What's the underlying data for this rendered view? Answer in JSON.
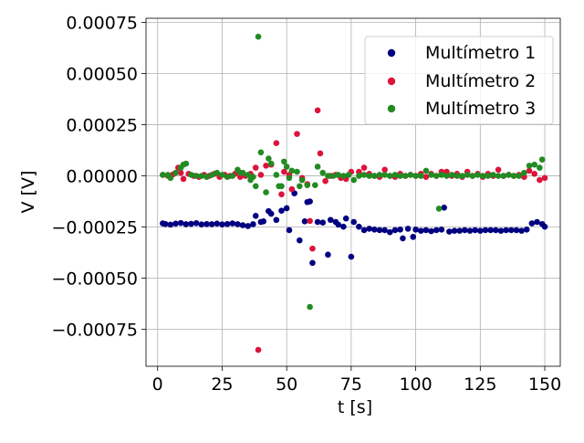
{
  "chart_data": {
    "type": "scatter",
    "title": "",
    "xlabel": "t [s]",
    "ylabel": "V [V]",
    "xlim": [
      -4.5,
      156
    ],
    "ylim": [
      -0.00093,
      0.00077
    ],
    "xticks": [
      0,
      25,
      50,
      75,
      100,
      125,
      150
    ],
    "xtick_labels": [
      "0",
      "25",
      "50",
      "75",
      "100",
      "125",
      "150"
    ],
    "yticks": [
      -0.00075,
      -0.0005,
      -0.00025,
      0.0,
      0.00025,
      0.0005,
      0.00075
    ],
    "ytick_labels": [
      "−0.00075",
      "−0.00050",
      "−0.00025",
      "0.00000",
      "0.00025",
      "0.00050",
      "0.00075"
    ],
    "grid": true,
    "legend_position": "top-right",
    "series": [
      {
        "name": "Multímetro 1",
        "color": "#000080",
        "points": [
          [
            2,
            -0.000232
          ],
          [
            3,
            -0.000235
          ],
          [
            5,
            -0.000238
          ],
          [
            7,
            -0.000233
          ],
          [
            9,
            -0.00023
          ],
          [
            11,
            -0.000236
          ],
          [
            13,
            -0.000234
          ],
          [
            15,
            -0.000231
          ],
          [
            17,
            -0.000237
          ],
          [
            19,
            -0.000235
          ],
          [
            21,
            -0.000236
          ],
          [
            23,
            -0.000233
          ],
          [
            25,
            -0.000237
          ],
          [
            27,
            -0.000235
          ],
          [
            29,
            -0.000232
          ],
          [
            31,
            -0.000236
          ],
          [
            33,
            -0.000241
          ],
          [
            35,
            -0.000245
          ],
          [
            37,
            -0.000236
          ],
          [
            38,
            -0.000195
          ],
          [
            40,
            -0.000225
          ],
          [
            41,
            -0.000222
          ],
          [
            43,
            -0.000172
          ],
          [
            44,
            -0.000185
          ],
          [
            46,
            -0.000215
          ],
          [
            48,
            -0.00017
          ],
          [
            50,
            -0.000158
          ],
          [
            51,
            -0.000265
          ],
          [
            53,
            -8.5e-05
          ],
          [
            55,
            -0.000315
          ],
          [
            57,
            -0.000222
          ],
          [
            58,
            -0.000128
          ],
          [
            59,
            -0.000125
          ],
          [
            60,
            -0.000425
          ],
          [
            62,
            -0.000225
          ],
          [
            64,
            -0.000228
          ],
          [
            66,
            -0.000385
          ],
          [
            67,
            -0.000215
          ],
          [
            69,
            -0.000225
          ],
          [
            70,
            -0.000238
          ],
          [
            72,
            -0.000248
          ],
          [
            73,
            -0.000208
          ],
          [
            75,
            -0.000395
          ],
          [
            76,
            -0.000225
          ],
          [
            78,
            -0.000248
          ],
          [
            80,
            -0.000265
          ],
          [
            82,
            -0.000258
          ],
          [
            84,
            -0.000262
          ],
          [
            86,
            -0.000265
          ],
          [
            88,
            -0.000265
          ],
          [
            90,
            -0.000275
          ],
          [
            92,
            -0.000265
          ],
          [
            94,
            -0.000262
          ],
          [
            95,
            -0.000305
          ],
          [
            97,
            -0.000258
          ],
          [
            99,
            -0.000298
          ],
          [
            100,
            -0.000262
          ],
          [
            102,
            -0.000268
          ],
          [
            104,
            -0.000265
          ],
          [
            106,
            -0.00027
          ],
          [
            108,
            -0.000265
          ],
          [
            110,
            -0.000262
          ],
          [
            111,
            -0.000155
          ],
          [
            113,
            -0.000272
          ],
          [
            115,
            -0.000268
          ],
          [
            117,
            -0.000268
          ],
          [
            119,
            -0.000265
          ],
          [
            121,
            -0.000268
          ],
          [
            123,
            -0.000265
          ],
          [
            125,
            -0.000268
          ],
          [
            127,
            -0.000265
          ],
          [
            129,
            -0.000265
          ],
          [
            131,
            -0.000265
          ],
          [
            133,
            -0.000268
          ],
          [
            135,
            -0.000265
          ],
          [
            137,
            -0.000265
          ],
          [
            139,
            -0.000265
          ],
          [
            141,
            -0.000268
          ],
          [
            143,
            -0.000262
          ],
          [
            145,
            -0.000232
          ],
          [
            147,
            -0.000225
          ],
          [
            149,
            -0.000235
          ],
          [
            150,
            -0.000248
          ]
        ]
      },
      {
        "name": "Multímetro 2",
        "color": "#dc143c",
        "points": [
          [
            2,
            5e-06
          ],
          [
            4,
            0.0
          ],
          [
            6,
            8e-06
          ],
          [
            8,
            4e-05
          ],
          [
            9,
            1.5e-05
          ],
          [
            10,
            -1.5e-05
          ],
          [
            12,
            1e-05
          ],
          [
            14,
            0.0
          ],
          [
            16,
            -5e-06
          ],
          [
            18,
            5e-06
          ],
          [
            20,
            0.0
          ],
          [
            22,
            1e-05
          ],
          [
            24,
            -5e-06
          ],
          [
            26,
            5e-06
          ],
          [
            28,
            0.0
          ],
          [
            30,
            1e-05
          ],
          [
            32,
            -5e-06
          ],
          [
            34,
            0.0
          ],
          [
            36,
            1e-05
          ],
          [
            38,
            4e-05
          ],
          [
            39,
            -0.00085
          ],
          [
            40,
            5e-06
          ],
          [
            42,
            5e-05
          ],
          [
            44,
            5.5e-05
          ],
          [
            46,
            0.00016
          ],
          [
            48,
            -9e-05
          ],
          [
            49,
            2e-05
          ],
          [
            51,
            5e-06
          ],
          [
            52,
            -6.5e-05
          ],
          [
            54,
            0.000205
          ],
          [
            56,
            -1e-05
          ],
          [
            58,
            -4e-05
          ],
          [
            59,
            -0.00022
          ],
          [
            60,
            -0.000355
          ],
          [
            62,
            0.00032
          ],
          [
            63,
            0.00011
          ],
          [
            65,
            -2.5e-05
          ],
          [
            67,
            0.0
          ],
          [
            69,
            5e-06
          ],
          [
            71,
            -1e-05
          ],
          [
            73,
            -1.5e-05
          ],
          [
            75,
            2e-05
          ],
          [
            78,
            2e-05
          ],
          [
            80,
            4e-05
          ],
          [
            82,
            1e-05
          ],
          [
            84,
            0.0
          ],
          [
            86,
            -5e-06
          ],
          [
            88,
            3e-05
          ],
          [
            90,
            0.0
          ],
          [
            92,
            -5e-06
          ],
          [
            94,
            1e-05
          ],
          [
            96,
            0.0
          ],
          [
            98,
            5e-06
          ],
          [
            100,
            0.0
          ],
          [
            102,
            1e-05
          ],
          [
            104,
            -5e-06
          ],
          [
            106,
            1e-05
          ],
          [
            108,
            0.0
          ],
          [
            110,
            2e-05
          ],
          [
            112,
            2e-05
          ],
          [
            114,
            0.0
          ],
          [
            116,
            1e-05
          ],
          [
            118,
            -5e-06
          ],
          [
            120,
            2e-05
          ],
          [
            122,
            0.0
          ],
          [
            124,
            1e-05
          ],
          [
            126,
            -5e-06
          ],
          [
            128,
            1e-05
          ],
          [
            130,
            0.0
          ],
          [
            132,
            3e-05
          ],
          [
            134,
            0.0
          ],
          [
            136,
            5e-06
          ],
          [
            138,
            0.0
          ],
          [
            140,
            5e-06
          ],
          [
            142,
            -5e-06
          ],
          [
            144,
            2.5e-05
          ],
          [
            146,
            1e-05
          ],
          [
            148,
            -2e-05
          ],
          [
            150,
            -1e-05
          ]
        ]
      },
      {
        "name": "Multímetro 3",
        "color": "#228b22",
        "points": [
          [
            2,
            5e-06
          ],
          [
            4,
            5e-06
          ],
          [
            5,
            -1e-05
          ],
          [
            7,
            1.5e-05
          ],
          [
            9,
            4e-05
          ],
          [
            10,
            5.5e-05
          ],
          [
            11,
            6e-05
          ],
          [
            13,
            5e-06
          ],
          [
            15,
            0.0
          ],
          [
            17,
            0.0
          ],
          [
            19,
            -5e-06
          ],
          [
            21,
            5e-06
          ],
          [
            23,
            1.5e-05
          ],
          [
            25,
            5e-06
          ],
          [
            27,
            -5e-06
          ],
          [
            29,
            0.0
          ],
          [
            31,
            3e-05
          ],
          [
            32,
            1.5e-05
          ],
          [
            33,
            1.5e-05
          ],
          [
            35,
            5e-06
          ],
          [
            36,
            -2e-05
          ],
          [
            37,
            -5e-06
          ],
          [
            38,
            -5e-05
          ],
          [
            39,
            0.00068
          ],
          [
            40,
            0.000115
          ],
          [
            42,
            -8e-05
          ],
          [
            43,
            8.5e-05
          ],
          [
            44,
            6e-05
          ],
          [
            46,
            5e-06
          ],
          [
            47,
            -5e-05
          ],
          [
            48,
            -5e-05
          ],
          [
            49,
            7e-05
          ],
          [
            50,
            4.5e-05
          ],
          [
            51,
            -1e-05
          ],
          [
            52,
            2.5e-05
          ],
          [
            54,
            2e-05
          ],
          [
            55,
            -5e-05
          ],
          [
            56,
            -2e-05
          ],
          [
            58,
            -4.5e-05
          ],
          [
            59,
            -0.00064
          ],
          [
            61,
            -4.5e-05
          ],
          [
            62,
            4.5e-05
          ],
          [
            64,
            1.5e-05
          ],
          [
            66,
            0.0
          ],
          [
            68,
            0.0
          ],
          [
            70,
            5e-06
          ],
          [
            72,
            0.0
          ],
          [
            74,
            5e-06
          ],
          [
            76,
            -2e-05
          ],
          [
            78,
            0.0
          ],
          [
            80,
            5e-06
          ],
          [
            82,
            0.0
          ],
          [
            84,
            0.0
          ],
          [
            86,
            5e-06
          ],
          [
            88,
            5e-06
          ],
          [
            90,
            0.0
          ],
          [
            92,
            5e-06
          ],
          [
            94,
            0.0
          ],
          [
            96,
            0.0
          ],
          [
            98,
            5e-06
          ],
          [
            100,
            0.0
          ],
          [
            102,
            0.0
          ],
          [
            104,
            2.5e-05
          ],
          [
            106,
            5e-06
          ],
          [
            108,
            0.0
          ],
          [
            109,
            -0.00016
          ],
          [
            110,
            5e-06
          ],
          [
            112,
            0.0
          ],
          [
            114,
            5e-06
          ],
          [
            116,
            0.0
          ],
          [
            118,
            0.0
          ],
          [
            120,
            5e-06
          ],
          [
            122,
            0.0
          ],
          [
            124,
            5e-06
          ],
          [
            126,
            0.0
          ],
          [
            128,
            0.0
          ],
          [
            130,
            5e-06
          ],
          [
            132,
            0.0
          ],
          [
            134,
            0.0
          ],
          [
            136,
            5e-06
          ],
          [
            138,
            0.0
          ],
          [
            140,
            0.0
          ],
          [
            142,
            1.5e-05
          ],
          [
            144,
            5e-05
          ],
          [
            146,
            5.5e-05
          ],
          [
            148,
            4e-05
          ],
          [
            149,
            8e-05
          ]
        ]
      }
    ]
  }
}
